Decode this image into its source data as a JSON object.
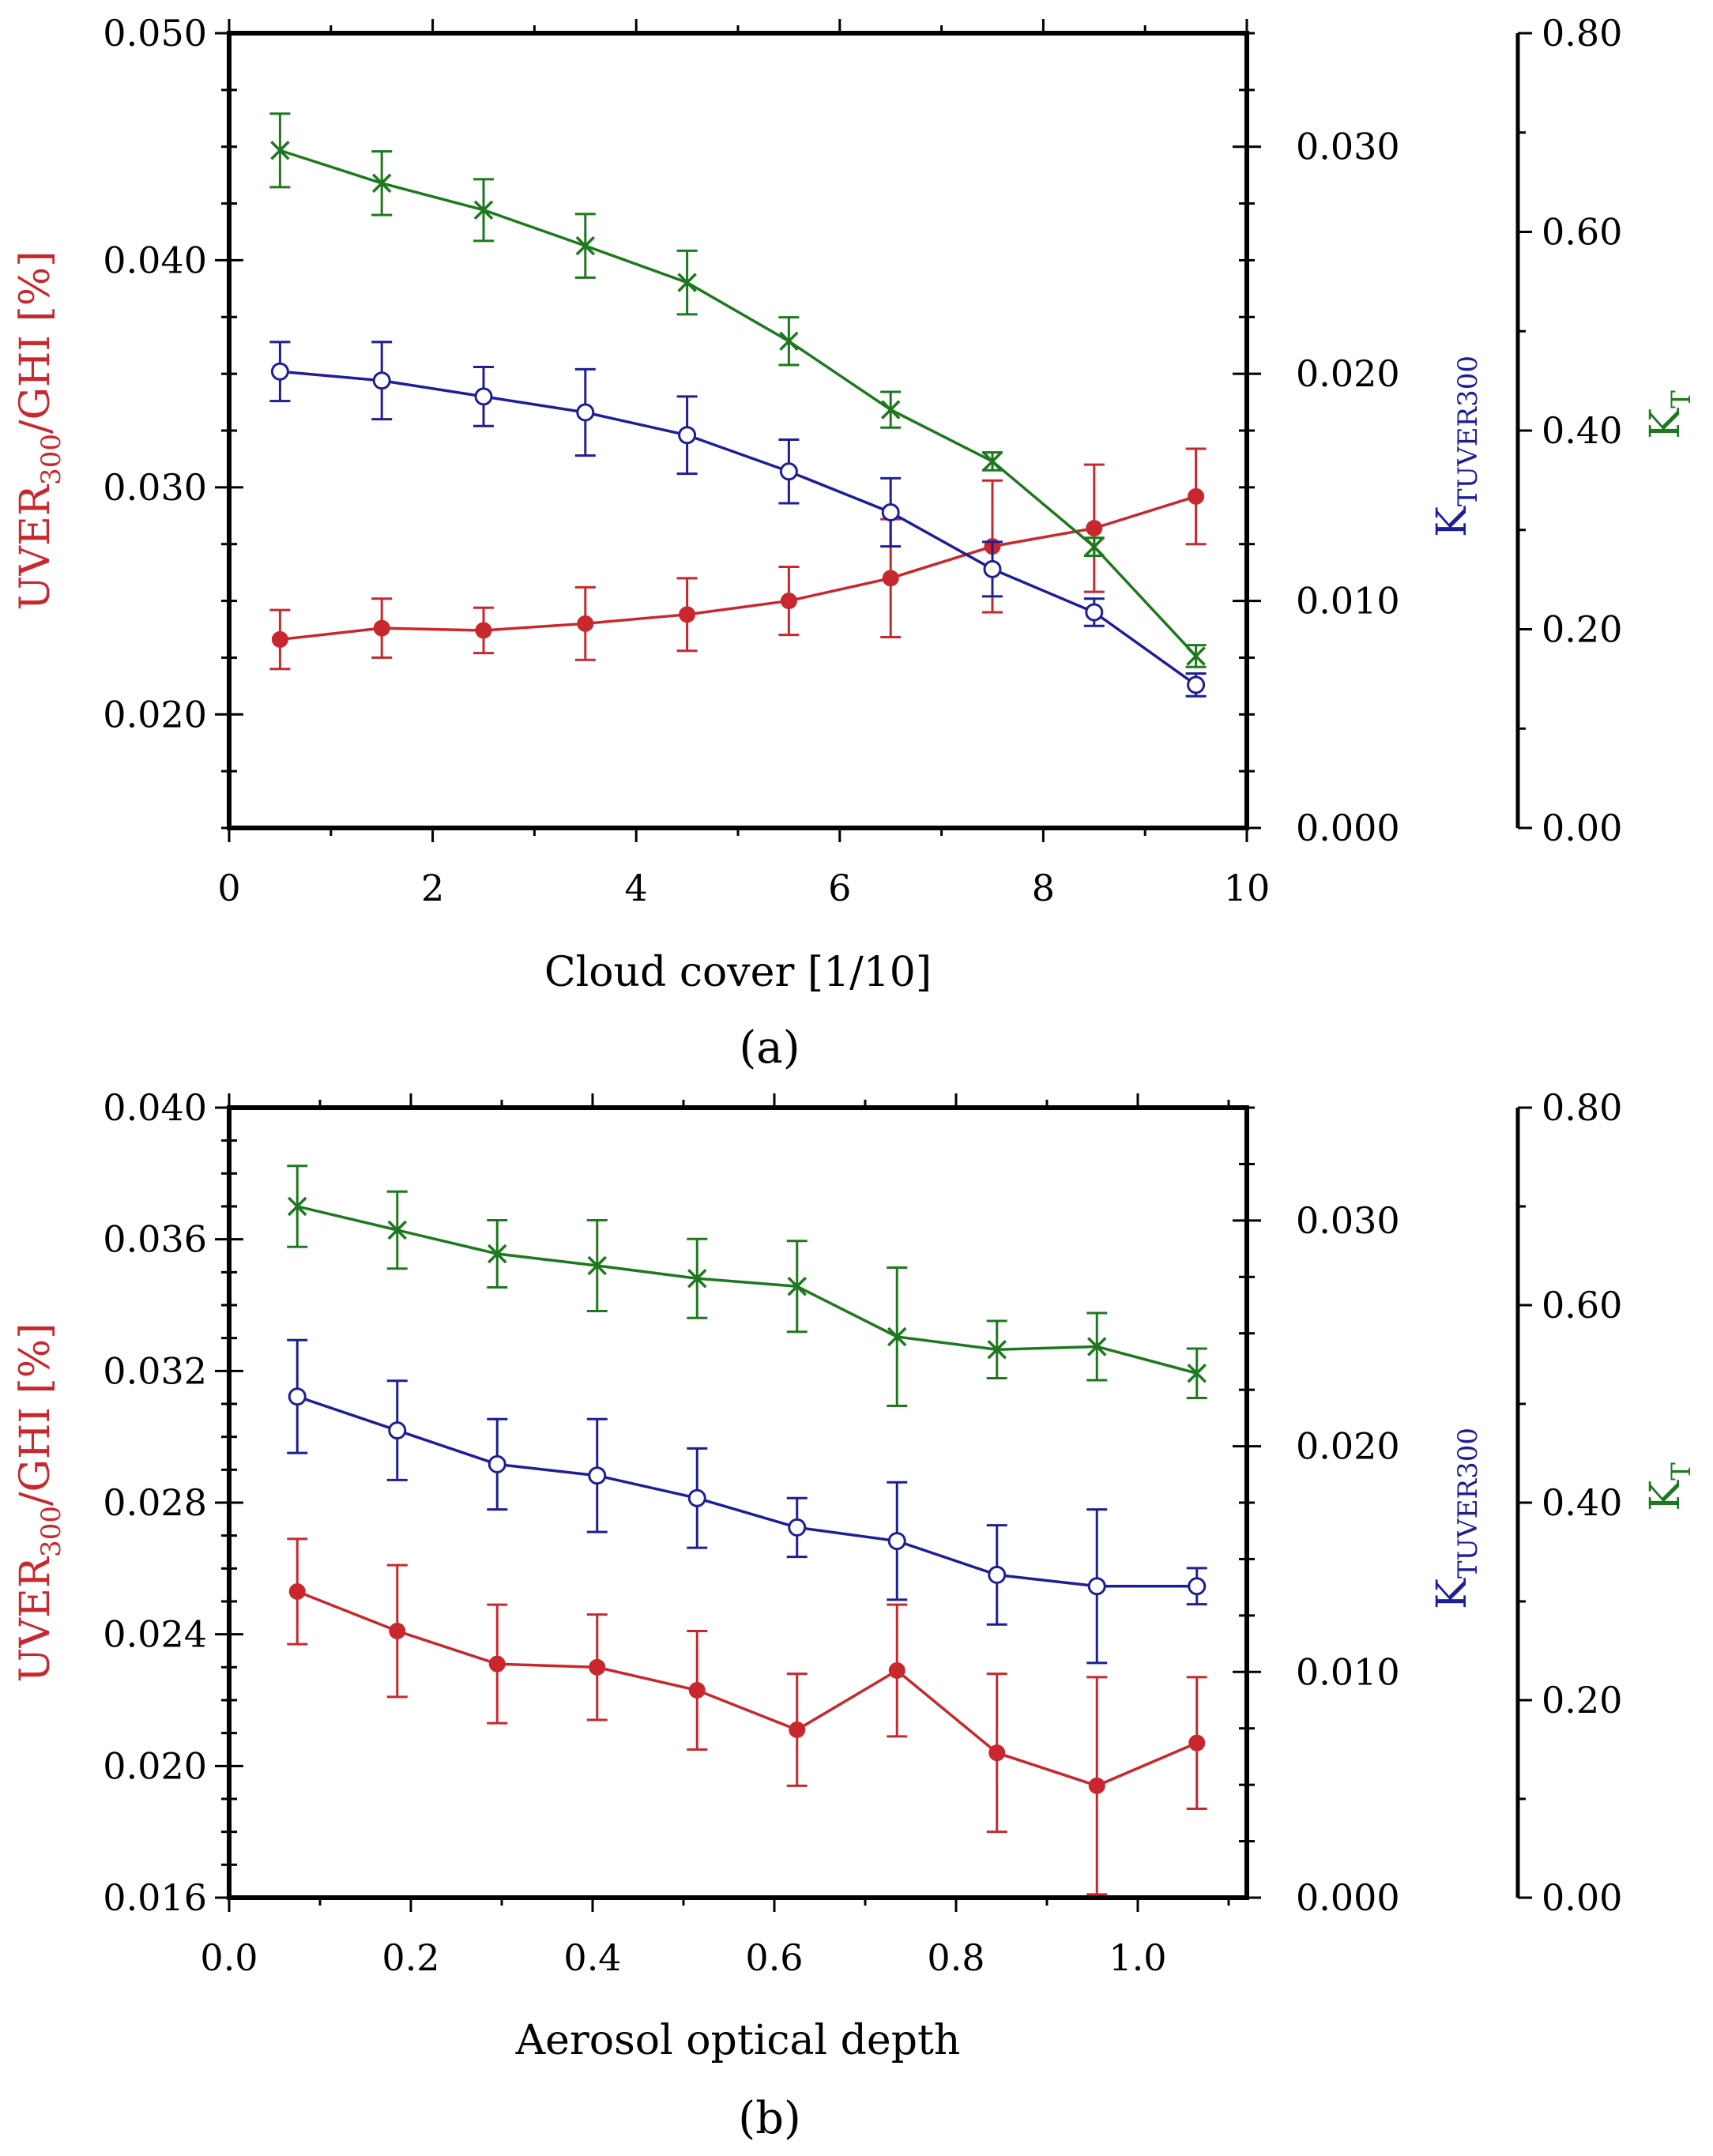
{
  "colors": {
    "uver": "#c8282d",
    "ktuver": "#1e1e96",
    "kt": "#1e781e",
    "axis": "#000000"
  },
  "chart_data": [
    {
      "type": "line",
      "panel_label": "(a)",
      "xlabel": "Cloud cover [1/10]",
      "xlim": [
        0,
        10
      ],
      "xticks": [
        "0",
        "2",
        "4",
        "6",
        "8",
        "10"
      ],
      "x": [
        0.5,
        1.5,
        2.5,
        3.5,
        4.5,
        5.5,
        6.5,
        7.5,
        8.5,
        9.5
      ],
      "left_axis": {
        "label_main": "UVER",
        "label_sub": "300",
        "label_rest": "/GHI [%]",
        "ylim": [
          0.015,
          0.05
        ],
        "ticks": [
          "0.020",
          "0.030",
          "0.040",
          "0.050"
        ],
        "tick_values": [
          0.02,
          0.03,
          0.04,
          0.05
        ]
      },
      "right_axis_1": {
        "label_main": "K",
        "label_sub": "TUVER300",
        "ylim": [
          0.0,
          0.035
        ],
        "ticks": [
          "0.000",
          "0.010",
          "0.020",
          "0.030"
        ],
        "tick_values": [
          0.0,
          0.01,
          0.02,
          0.03
        ]
      },
      "right_axis_2": {
        "label_main": "K",
        "label_sub": "T",
        "ylim": [
          0.0,
          0.8
        ],
        "ticks": [
          "0.00",
          "0.20",
          "0.40",
          "0.60",
          "0.80"
        ],
        "tick_values": [
          0.0,
          0.2,
          0.4,
          0.6,
          0.8
        ]
      },
      "series": [
        {
          "name": "UVER300/GHI",
          "axis": "left",
          "marker": "filled-circle",
          "color_key": "uver",
          "values": [
            0.0233,
            0.0238,
            0.0237,
            0.024,
            0.0244,
            0.025,
            0.026,
            0.0274,
            0.0282,
            0.0296
          ],
          "errors": [
            0.0013,
            0.0013,
            0.001,
            0.0016,
            0.0016,
            0.0015,
            0.0026,
            0.0029,
            0.0028,
            0.0021
          ]
        },
        {
          "name": "KTUVER300",
          "axis": "right1",
          "marker": "open-circle",
          "color_key": "ktuver",
          "values": [
            0.0201,
            0.0197,
            0.019,
            0.0183,
            0.0173,
            0.0157,
            0.0139,
            0.0114,
            0.0095,
            0.0063
          ],
          "errors": [
            0.0013,
            0.0017,
            0.0013,
            0.0019,
            0.0017,
            0.0014,
            0.0015,
            0.0012,
            0.0006,
            0.0005
          ]
        },
        {
          "name": "KT",
          "axis": "right2",
          "marker": "cross",
          "color_key": "kt",
          "values": [
            0.682,
            0.649,
            0.622,
            0.586,
            0.549,
            0.49,
            0.421,
            0.369,
            0.283,
            0.173
          ],
          "errors": [
            0.037,
            0.032,
            0.031,
            0.032,
            0.032,
            0.024,
            0.018,
            0.009,
            0.009,
            0.011
          ]
        }
      ]
    },
    {
      "type": "line",
      "panel_label": "(b)",
      "xlabel": "Aerosol optical depth",
      "xlim": [
        0.0,
        1.12
      ],
      "xticks": [
        "0.0",
        "0.2",
        "0.4",
        "0.6",
        "0.8",
        "1.0"
      ],
      "x": [
        0.075,
        0.185,
        0.295,
        0.405,
        0.515,
        0.625,
        0.735,
        0.845,
        0.955,
        1.065
      ],
      "left_axis": {
        "label_main": "UVER",
        "label_sub": "300",
        "label_rest": "/GHI [%]",
        "ylim": [
          0.016,
          0.04
        ],
        "ticks": [
          "0.016",
          "0.020",
          "0.024",
          "0.028",
          "0.032",
          "0.036",
          "0.040"
        ],
        "tick_values": [
          0.016,
          0.02,
          0.024,
          0.028,
          0.032,
          0.036,
          0.04
        ]
      },
      "right_axis_1": {
        "label_main": "K",
        "label_sub": "TUVER300",
        "ylim": [
          0.0,
          0.035
        ],
        "ticks": [
          "0.000",
          "0.010",
          "0.020",
          "0.030"
        ],
        "tick_values": [
          0.0,
          0.01,
          0.02,
          0.03
        ]
      },
      "right_axis_2": {
        "label_main": "K",
        "label_sub": "T",
        "ylim": [
          0.0,
          0.8
        ],
        "ticks": [
          "0.00",
          "0.20",
          "0.40",
          "0.60",
          "0.80"
        ],
        "tick_values": [
          0.0,
          0.2,
          0.4,
          0.6,
          0.8
        ]
      },
      "series": [
        {
          "name": "UVER300/GHI",
          "axis": "left",
          "marker": "filled-circle",
          "color_key": "uver",
          "values": [
            0.0253,
            0.0241,
            0.0231,
            0.023,
            0.0223,
            0.0211,
            0.0229,
            0.0204,
            0.0194,
            0.0207
          ],
          "errors": [
            0.0016,
            0.002,
            0.0018,
            0.0016,
            0.0018,
            0.0017,
            0.002,
            0.0024,
            0.0033,
            0.002
          ]
        },
        {
          "name": "KTUVER300",
          "axis": "right1",
          "marker": "open-circle",
          "color_key": "ktuver",
          "values": [
            0.0222,
            0.0207,
            0.0192,
            0.0187,
            0.0177,
            0.0164,
            0.0158,
            0.0143,
            0.0138,
            0.0138
          ],
          "errors": [
            0.0025,
            0.0022,
            0.002,
            0.0025,
            0.0022,
            0.0013,
            0.0026,
            0.0022,
            0.0034,
            0.0008
          ]
        },
        {
          "name": "KT",
          "axis": "right2",
          "marker": "cross",
          "color_key": "kt",
          "values": [
            0.7,
            0.676,
            0.652,
            0.64,
            0.627,
            0.619,
            0.568,
            0.555,
            0.558,
            0.531
          ],
          "errors": [
            0.041,
            0.039,
            0.034,
            0.046,
            0.04,
            0.046,
            0.07,
            0.029,
            0.034,
            0.025
          ]
        }
      ]
    }
  ]
}
